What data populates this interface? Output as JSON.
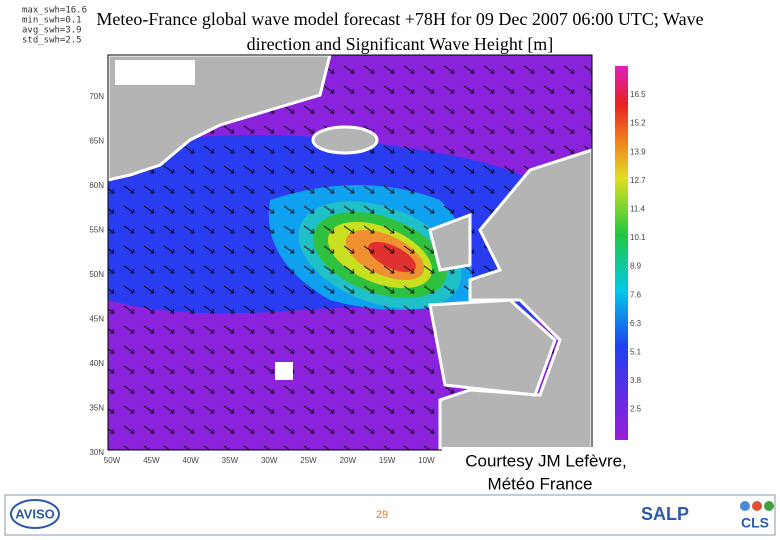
{
  "stats": [
    "max_swh=16.6",
    "min_swh=0.1",
    "avg_swh=3.9",
    "std_swh=2.5"
  ],
  "title_lines": [
    "Meteo-France global wave model forecast +78H for 09 Dec 2007 06:00 UTC; Wave",
    "direction and Significant Wave Height [m]"
  ],
  "lat_labels": [
    "70N",
    "65N",
    "60N",
    "55N",
    "50N",
    "45N",
    "40N",
    "35N",
    "30N"
  ],
  "lon_labels": [
    "50W",
    "45W",
    "40W",
    "35W",
    "30W",
    "25W",
    "20W",
    "15W",
    "10W"
  ],
  "colorbar_labels": [
    "16.5",
    "15.2",
    "13.9",
    "12.7",
    "11.4",
    "10.1",
    "8.9",
    "7.6",
    "6.3",
    "5.1",
    "3.8",
    "2.5"
  ],
  "courtesy_lines": [
    "Courtesy  JM Lefèvre,",
    "Météo France"
  ],
  "page_number": "29",
  "logos": [
    "AVISO",
    "SALP",
    "CLS"
  ]
}
